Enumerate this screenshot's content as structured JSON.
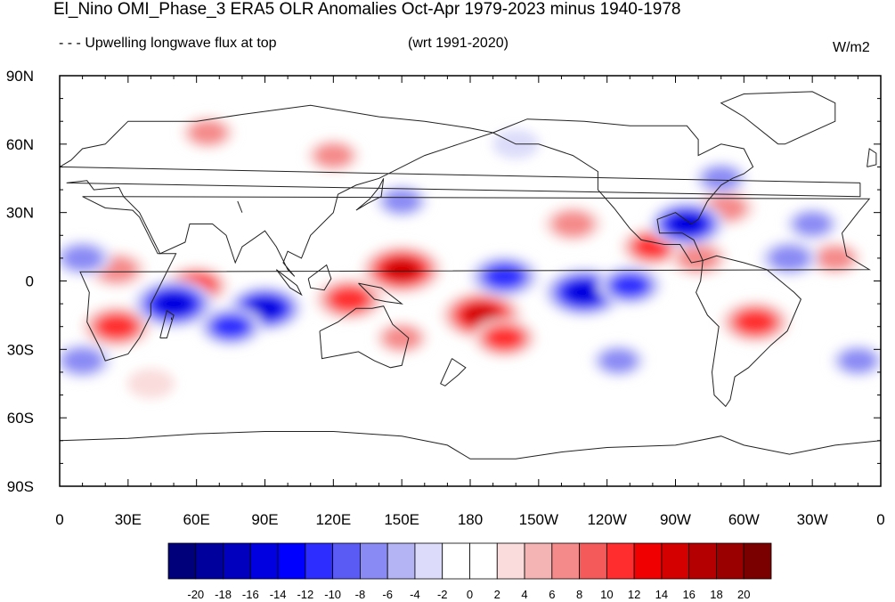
{
  "title": "El_Nino OMI_Phase_3 ERA5 OLR Anomalies Oct-Apr 1979-2023 minus 1940-1978",
  "subtitle_left": "- - - Upwelling longwave flux at top",
  "subtitle_center": "(wrt 1991-2020)",
  "units": "W/m2",
  "map": {
    "lat_ticks": [
      "90N",
      "60N",
      "30N",
      "0",
      "30S",
      "60S",
      "90S"
    ],
    "lon_ticks": [
      "0",
      "30E",
      "60E",
      "90E",
      "120E",
      "150E",
      "180",
      "150W",
      "120W",
      "90W",
      "60W",
      "30W",
      "0"
    ]
  },
  "colorbar": {
    "labels": [
      "-20",
      "-18",
      "-16",
      "-14",
      "-12",
      "-10",
      "-8",
      "-6",
      "-4",
      "-2",
      "0",
      "2",
      "4",
      "6",
      "8",
      "10",
      "12",
      "14",
      "16",
      "18",
      "20"
    ],
    "colors": [
      "#00007a",
      "#00009c",
      "#0000be",
      "#0000e0",
      "#0000ff",
      "#2d2dff",
      "#5a5af5",
      "#8a8af5",
      "#b4b4f5",
      "#dcdcfa",
      "#ffffff",
      "#ffffff",
      "#fadcdc",
      "#f5b4b4",
      "#f58a8a",
      "#f55a5a",
      "#ff2d2d",
      "#f00000",
      "#d40000",
      "#b40000",
      "#9a0000",
      "#7a0000"
    ]
  },
  "anomalies": [
    {
      "lon": 150,
      "lat": 5,
      "value": 16
    },
    {
      "lon": 127,
      "lat": -8,
      "value": 12
    },
    {
      "lon": 185,
      "lat": -15,
      "value": 16
    },
    {
      "lon": 195,
      "lat": -25,
      "value": 10
    },
    {
      "lon": 60,
      "lat": -2,
      "value": 10
    },
    {
      "lon": 25,
      "lat": -20,
      "value": 12
    },
    {
      "lon": 25,
      "lat": 5,
      "value": 8
    },
    {
      "lon": 260,
      "lat": 15,
      "value": 10
    },
    {
      "lon": 280,
      "lat": 10,
      "value": 8
    },
    {
      "lon": 305,
      "lat": -18,
      "value": 12
    },
    {
      "lon": 225,
      "lat": 25,
      "value": 8
    },
    {
      "lon": 292,
      "lat": 32,
      "value": 8
    },
    {
      "lon": 120,
      "lat": 55,
      "value": 6
    },
    {
      "lon": 65,
      "lat": 65,
      "value": 6
    },
    {
      "lon": 340,
      "lat": 10,
      "value": 6
    },
    {
      "lon": 150,
      "lat": -25,
      "value": 6
    },
    {
      "lon": 40,
      "lat": -45,
      "value": 4
    },
    {
      "lon": 230,
      "lat": -5,
      "value": -16
    },
    {
      "lon": 195,
      "lat": 2,
      "value": -12
    },
    {
      "lon": 250,
      "lat": -2,
      "value": -10
    },
    {
      "lon": 50,
      "lat": -10,
      "value": -16
    },
    {
      "lon": 90,
      "lat": -12,
      "value": -14
    },
    {
      "lon": 75,
      "lat": -20,
      "value": -10
    },
    {
      "lon": 275,
      "lat": 25,
      "value": -14
    },
    {
      "lon": 320,
      "lat": 10,
      "value": -8
    },
    {
      "lon": 330,
      "lat": 25,
      "value": -6
    },
    {
      "lon": 10,
      "lat": -35,
      "value": -8
    },
    {
      "lon": 350,
      "lat": -35,
      "value": -6
    },
    {
      "lon": 150,
      "lat": 35,
      "value": -6
    },
    {
      "lon": 245,
      "lat": -35,
      "value": -6
    },
    {
      "lon": 10,
      "lat": 10,
      "value": -8
    },
    {
      "lon": 290,
      "lat": 45,
      "value": -6
    },
    {
      "lon": 200,
      "lat": 60,
      "value": -4
    }
  ]
}
